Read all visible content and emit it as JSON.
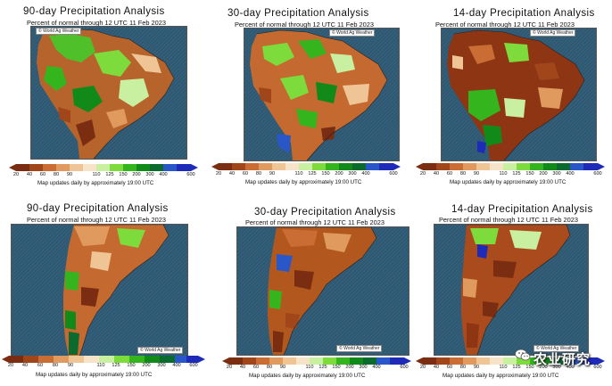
{
  "colors": {
    "ocean": "#2f5872",
    "scale": [
      "#7a2d10",
      "#a1461b",
      "#c96d35",
      "#e09a5d",
      "#f0c596",
      "#f7e3c7",
      "#c8f0a0",
      "#7ddb3c",
      "#34b51d",
      "#128a19",
      "#0b6a2e",
      "#2a57c8",
      "#1e2ab8"
    ]
  },
  "panels": [
    {
      "title": "90-day Precipitation Analysis",
      "subtitle": "Percent of normal through 12 UTC 11 Feb 2023",
      "credit": "© World Ag Weather",
      "note": "Map updates daily by approximately 19:00 UTC",
      "region": "north",
      "scale_ticks": [
        "20",
        "40",
        "60",
        "80",
        "90",
        "110",
        "125",
        "150",
        "200",
        "300",
        "400",
        "600"
      ]
    },
    {
      "title": "30-day Precipitation Analysis",
      "subtitle": "Percent of normal through 12 UTC 11 Feb 2023",
      "credit": "© World Ag Weather",
      "note": "Map updates daily by approximately 19:00 UTC",
      "region": "north",
      "scale_ticks": [
        "20",
        "40",
        "60",
        "80",
        "90",
        "110",
        "125",
        "150",
        "200",
        "300",
        "400",
        "600"
      ]
    },
    {
      "title": "14-day Precipitation Analysis",
      "subtitle": "Percent of normal through 12 UTC 11 Feb 2023",
      "credit": "© World Ag Weather",
      "note": "Map updates daily by approximately 19:00 UTC",
      "region": "north",
      "scale_ticks": [
        "20",
        "40",
        "60",
        "80",
        "90",
        "110",
        "125",
        "150",
        "200",
        "300",
        "400",
        "600"
      ]
    },
    {
      "title": "90-day Precipitation Analysis",
      "subtitle": "Percent of normal through 12 UTC 11 Feb 2023",
      "credit": "© World Ag Weather",
      "note": "Map updates daily by approximately 19:00 UTC",
      "region": "south",
      "scale_ticks": [
        "20",
        "40",
        "60",
        "80",
        "90",
        "110",
        "125",
        "150",
        "200",
        "300",
        "400",
        "600"
      ]
    },
    {
      "title": "30-day Precipitation Analysis",
      "subtitle": "Percent of normal through 12 UTC 11 Feb 2023",
      "credit": "© World Ag Weather",
      "note": "Map updates daily by approximately 19:00 UTC",
      "region": "south",
      "scale_ticks": [
        "20",
        "40",
        "60",
        "80",
        "90",
        "110",
        "125",
        "150",
        "200",
        "300",
        "400",
        "600"
      ]
    },
    {
      "title": "14-day Precipitation Analysis",
      "subtitle": "Percent of normal through 12 UTC 11 Feb 2023",
      "credit": "© World Ag Weather",
      "note": "Map updates daily by approximately 19:00 UTC",
      "region": "south",
      "scale_ticks": [
        "20",
        "40",
        "60",
        "80",
        "90",
        "110",
        "125",
        "150",
        "200",
        "300",
        "400",
        "600"
      ]
    }
  ],
  "watermark": {
    "text": "农业研究",
    "icon": "wechat-icon"
  }
}
